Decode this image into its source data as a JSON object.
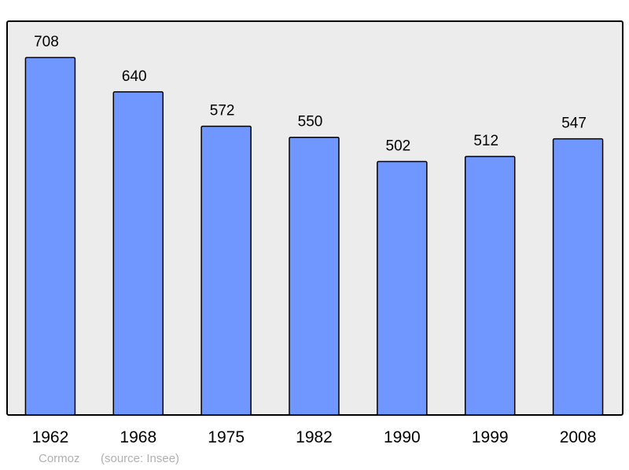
{
  "chart_data": {
    "type": "bar",
    "categories": [
      "1962",
      "1968",
      "1975",
      "1982",
      "1990",
      "1999",
      "2008"
    ],
    "values": [
      708,
      640,
      572,
      550,
      502,
      512,
      547
    ],
    "ylim": [
      0,
      780
    ],
    "grid": false,
    "data_labels": true,
    "colors": {
      "bar": "#7097ff",
      "background": "#ececec",
      "frame": "#000000"
    }
  },
  "footer": {
    "place": "Cormoz",
    "source": "(source: Insee)"
  }
}
